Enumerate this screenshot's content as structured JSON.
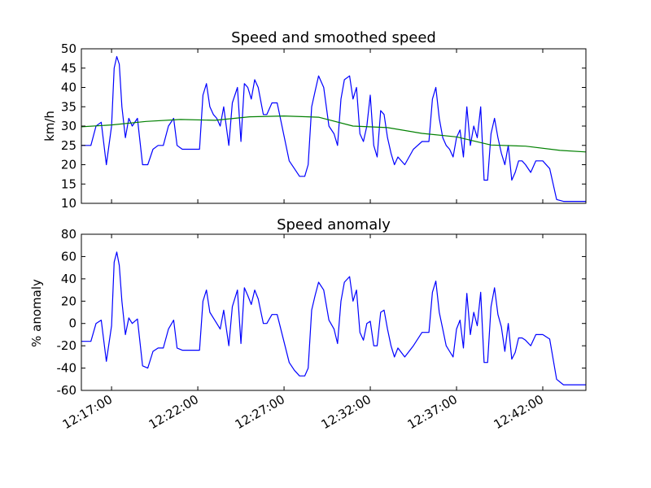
{
  "chart_data": [
    {
      "type": "line",
      "title": "Speed and smoothed speed",
      "xlabel": "",
      "ylabel": "km/h",
      "ylim": [
        10,
        50
      ],
      "yticks": [
        10,
        15,
        20,
        25,
        30,
        35,
        40,
        45,
        50
      ],
      "xlim_minutes": [
        -1.75,
        27.5
      ],
      "x_axis_start": "12:17:00",
      "grid": false,
      "series": [
        {
          "color": "#0000ff",
          "x_minutes": [
            -1.75,
            -1.2,
            -0.9,
            -0.6,
            -0.3,
            0.0,
            0.15,
            0.3,
            0.45,
            0.6,
            0.8,
            1.0,
            1.2,
            1.5,
            1.8,
            2.1,
            2.4,
            2.7,
            3.0,
            3.3,
            3.6,
            3.8,
            4.1,
            4.3,
            4.6,
            5.1,
            5.3,
            5.5,
            5.7,
            5.9,
            6.1,
            6.3,
            6.5,
            6.8,
            7.0,
            7.3,
            7.5,
            7.7,
            7.9,
            8.1,
            8.3,
            8.5,
            8.8,
            9.0,
            9.3,
            9.6,
            10.3,
            10.6,
            10.9,
            11.2,
            11.4,
            11.6,
            11.8,
            12.0,
            12.3,
            12.6,
            12.9,
            13.1,
            13.3,
            13.5,
            13.8,
            14.0,
            14.2,
            14.4,
            14.6,
            14.8,
            15.0,
            15.2,
            15.4,
            15.6,
            15.8,
            16.0,
            16.2,
            16.4,
            16.6,
            17.0,
            17.5,
            18.0,
            18.4,
            18.6,
            18.8,
            19.0,
            19.2,
            19.4,
            19.6,
            19.8,
            20.0,
            20.2,
            20.4,
            20.6,
            20.8,
            21.0,
            21.2,
            21.4,
            21.6,
            21.8,
            22.0,
            22.2,
            22.4,
            22.6,
            22.8,
            23.0,
            23.2,
            23.4,
            23.6,
            23.8,
            24.0,
            24.3,
            24.6,
            25.0,
            25.4,
            25.8,
            26.2,
            26.6,
            27.0,
            27.5
          ],
          "values": [
            25,
            25,
            30,
            31,
            20,
            30,
            45,
            48,
            46,
            35,
            27,
            32,
            30,
            32,
            20,
            20,
            24,
            25,
            25,
            30,
            32,
            25,
            24,
            24,
            24,
            24,
            38,
            41,
            35,
            33,
            32,
            30,
            35,
            25,
            36,
            40,
            26,
            41,
            40,
            37,
            42,
            40,
            33,
            33,
            36,
            36,
            21,
            19,
            17,
            17,
            20,
            35,
            39,
            43,
            40,
            30,
            28,
            25,
            37,
            42,
            43,
            37,
            40,
            28,
            26,
            30,
            38,
            25,
            22,
            34,
            33,
            27,
            23,
            20,
            22,
            20,
            24,
            26,
            26,
            37,
            40,
            32,
            27,
            25,
            24,
            22,
            27,
            29,
            22,
            35,
            25,
            30,
            27,
            35,
            16,
            16,
            28,
            32,
            27,
            23,
            20,
            25,
            16,
            18,
            21,
            21,
            20,
            18,
            21,
            21,
            19,
            11,
            10.5,
            10.5,
            10.5,
            10.5
          ]
        },
        {
          "color": "#008000",
          "x_minutes": [
            -1.75,
            0,
            2,
            4,
            6,
            8,
            10,
            12,
            14,
            16,
            18,
            20,
            22,
            24,
            26,
            27.5
          ],
          "values": [
            29.8,
            30.3,
            31.2,
            31.7,
            31.5,
            32.4,
            32.6,
            32.3,
            30.0,
            29.6,
            28.1,
            27.2,
            25.1,
            24.8,
            23.7,
            23.3
          ]
        }
      ]
    },
    {
      "type": "line",
      "title": "Speed anomaly",
      "xlabel": "",
      "ylabel": "% anomaly",
      "ylim": [
        -60,
        80
      ],
      "yticks": [
        -60,
        -40,
        -20,
        0,
        20,
        40,
        60,
        80
      ],
      "xticks_minutes": [
        0,
        5,
        10,
        15,
        20,
        25
      ],
      "xtick_labels": [
        "12:17:00",
        "12:22:00",
        "12:27:00",
        "12:32:00",
        "12:37:00",
        "12:42:00"
      ],
      "xlim_minutes": [
        -1.75,
        27.5
      ],
      "grid": false,
      "series": [
        {
          "color": "#0000ff",
          "x_minutes": [
            -1.75,
            -1.2,
            -0.9,
            -0.6,
            -0.3,
            0.0,
            0.15,
            0.3,
            0.45,
            0.6,
            0.8,
            1.0,
            1.2,
            1.5,
            1.8,
            2.1,
            2.4,
            2.7,
            3.0,
            3.3,
            3.6,
            3.8,
            4.1,
            4.3,
            4.6,
            5.1,
            5.3,
            5.5,
            5.7,
            5.9,
            6.1,
            6.3,
            6.5,
            6.8,
            7.0,
            7.3,
            7.5,
            7.7,
            7.9,
            8.1,
            8.3,
            8.5,
            8.8,
            9.0,
            9.3,
            9.6,
            10.3,
            10.6,
            10.9,
            11.2,
            11.4,
            11.6,
            11.8,
            12.0,
            12.3,
            12.6,
            12.9,
            13.1,
            13.3,
            13.5,
            13.8,
            14.0,
            14.2,
            14.4,
            14.6,
            14.8,
            15.0,
            15.2,
            15.4,
            15.6,
            15.8,
            16.0,
            16.2,
            16.4,
            16.6,
            17.0,
            17.5,
            18.0,
            18.4,
            18.6,
            18.8,
            19.0,
            19.2,
            19.4,
            19.6,
            19.8,
            20.0,
            20.2,
            20.4,
            20.6,
            20.8,
            21.0,
            21.2,
            21.4,
            21.6,
            21.8,
            22.0,
            22.2,
            22.4,
            22.6,
            22.8,
            23.0,
            23.2,
            23.4,
            23.6,
            23.8,
            24.0,
            24.3,
            24.6,
            25.0,
            25.4,
            25.8,
            26.2,
            26.6,
            27.0,
            27.5
          ],
          "values": [
            -16,
            -16,
            0,
            3,
            -34,
            -2,
            55,
            64,
            52,
            20,
            -10,
            5,
            0,
            4,
            -38,
            -40,
            -25,
            -22,
            -22,
            -5,
            3,
            -22,
            -24,
            -24,
            -24,
            -24,
            20,
            30,
            10,
            5,
            0,
            -5,
            12,
            -20,
            15,
            30,
            -18,
            32,
            25,
            17,
            30,
            22,
            0,
            0,
            8,
            8,
            -35,
            -42,
            -47,
            -47,
            -40,
            12,
            25,
            37,
            30,
            3,
            -5,
            -18,
            20,
            37,
            42,
            20,
            30,
            -8,
            -15,
            0,
            2,
            -20,
            -20,
            10,
            12,
            -5,
            -20,
            -30,
            -22,
            -30,
            -20,
            -8,
            -8,
            28,
            38,
            10,
            -5,
            -20,
            -25,
            -30,
            -5,
            3,
            -22,
            27,
            -10,
            10,
            -2,
            28,
            -35,
            -35,
            15,
            32,
            8,
            -3,
            -25,
            0,
            -32,
            -26,
            -13,
            -13,
            -15,
            -20,
            -10,
            -10,
            -14,
            -50,
            -55,
            -55,
            -55,
            -55
          ]
        }
      ]
    }
  ]
}
